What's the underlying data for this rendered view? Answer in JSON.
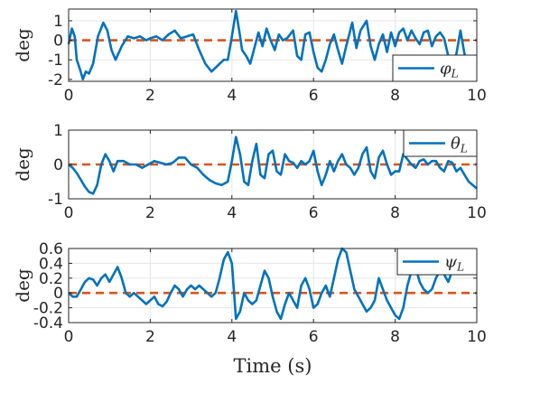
{
  "chart_data": [
    {
      "type": "line",
      "ylabel": "deg",
      "xlabel": "",
      "xlim": [
        0,
        10
      ],
      "ylim": [
        -2.1,
        1.6
      ],
      "xticks": [
        "0",
        "2",
        "4",
        "6",
        "8",
        "10"
      ],
      "yticks": [
        1,
        0,
        -1,
        -2
      ],
      "ytick_labels": [
        "1",
        "0",
        "-1",
        "-2"
      ],
      "grid": true,
      "legend_position": "bottom-right",
      "legend": {
        "symbol": "φ",
        "subscript": "L"
      },
      "series": [
        {
          "name": "φ_L",
          "color": "#0072BD",
          "x": [
            0,
            0.08,
            0.15,
            0.2,
            0.28,
            0.35,
            0.42,
            0.5,
            0.6,
            0.72,
            0.85,
            0.95,
            1.05,
            1.15,
            1.3,
            1.45,
            1.6,
            1.75,
            1.9,
            2.0,
            2.15,
            2.3,
            2.45,
            2.6,
            2.75,
            2.9,
            3.05,
            3.2,
            3.35,
            3.5,
            3.65,
            3.8,
            3.9,
            4.0,
            4.1,
            4.18,
            4.25,
            4.35,
            4.45,
            4.55,
            4.65,
            4.75,
            4.85,
            4.95,
            5.05,
            5.15,
            5.25,
            5.35,
            5.5,
            5.6,
            5.7,
            5.8,
            5.9,
            6.0,
            6.1,
            6.2,
            6.3,
            6.4,
            6.5,
            6.6,
            6.7,
            6.8,
            6.95,
            7.05,
            7.15,
            7.3,
            7.4,
            7.5,
            7.6,
            7.7,
            7.8,
            7.9,
            8.0,
            8.1,
            8.2,
            8.3,
            8.4,
            8.5,
            8.6,
            8.7,
            8.8,
            8.9,
            9.0,
            9.1,
            9.2,
            9.3,
            9.4,
            9.5,
            9.6,
            9.7,
            9.8,
            9.9,
            10.0
          ],
          "values": [
            -0.2,
            0.6,
            0.2,
            -1.0,
            -1.5,
            -2.0,
            -1.6,
            -1.7,
            -1.2,
            0.2,
            0.9,
            0.5,
            -0.5,
            -1.0,
            -0.3,
            0.2,
            0.1,
            0.2,
            0.0,
            0.1,
            0.2,
            0.0,
            0.3,
            0.5,
            0.1,
            0.2,
            0.3,
            -0.5,
            -1.2,
            -1.6,
            -1.3,
            -1.0,
            -1.0,
            0.2,
            1.5,
            0.5,
            -0.5,
            -0.8,
            -1.2,
            -0.4,
            0.4,
            -0.3,
            0.6,
            0.0,
            -0.5,
            0.3,
            0.0,
            0.1,
            0.5,
            -0.8,
            -1.0,
            0.3,
            0.4,
            -0.6,
            -1.4,
            -1.6,
            -1.0,
            -0.2,
            0.3,
            -0.5,
            -1.2,
            -0.3,
            0.9,
            -0.4,
            0.5,
            1.0,
            -0.3,
            -1.0,
            -0.2,
            0.3,
            -0.6,
            0.4,
            -0.3,
            0.4,
            0.6,
            0.0,
            0.5,
            0.1,
            -0.2,
            0.4,
            0.5,
            -0.3,
            0.2,
            0.4,
            0.1,
            -0.8,
            -1.2,
            -0.7,
            0.5,
            -0.7,
            -1.3,
            -1.6,
            -1.7
          ]
        },
        {
          "name": "zero reference",
          "color": "#D95319",
          "x": [
            0,
            10
          ],
          "values": [
            0,
            0
          ]
        }
      ]
    },
    {
      "type": "line",
      "ylabel": "deg",
      "xlabel": "",
      "xlim": [
        0,
        10
      ],
      "ylim": [
        -1,
        1
      ],
      "xticks": [
        "0",
        "2",
        "4",
        "6",
        "8",
        "10"
      ],
      "yticks": [
        1,
        0,
        -1
      ],
      "ytick_labels": [
        "1",
        "0",
        "-1"
      ],
      "grid": true,
      "legend_position": "top-right",
      "legend": {
        "symbol": "θ",
        "subscript": "L"
      },
      "series": [
        {
          "name": "θ_L",
          "color": "#0072BD",
          "x": [
            0,
            0.1,
            0.2,
            0.3,
            0.4,
            0.5,
            0.6,
            0.7,
            0.8,
            0.9,
            1.0,
            1.1,
            1.2,
            1.35,
            1.5,
            1.65,
            1.8,
            1.95,
            2.1,
            2.25,
            2.4,
            2.55,
            2.7,
            2.85,
            3.0,
            3.15,
            3.3,
            3.45,
            3.6,
            3.75,
            3.9,
            4.0,
            4.1,
            4.2,
            4.3,
            4.4,
            4.5,
            4.6,
            4.7,
            4.8,
            4.9,
            5.0,
            5.1,
            5.2,
            5.3,
            5.4,
            5.5,
            5.6,
            5.7,
            5.8,
            5.9,
            6.0,
            6.1,
            6.2,
            6.3,
            6.4,
            6.5,
            6.6,
            6.7,
            6.8,
            6.9,
            7.0,
            7.1,
            7.2,
            7.3,
            7.4,
            7.5,
            7.6,
            7.7,
            7.8,
            7.9,
            8.0,
            8.1,
            8.2,
            8.3,
            8.4,
            8.5,
            8.6,
            8.7,
            8.8,
            8.9,
            9.0,
            9.1,
            9.2,
            9.3,
            9.4,
            9.5,
            9.6,
            9.7,
            9.8,
            9.9,
            10.0
          ],
          "values": [
            0.0,
            -0.1,
            -0.25,
            -0.45,
            -0.65,
            -0.8,
            -0.85,
            -0.6,
            0.0,
            0.3,
            0.1,
            -0.2,
            0.1,
            0.1,
            0.0,
            0.0,
            -0.1,
            0.0,
            0.1,
            0.05,
            0.0,
            0.05,
            0.2,
            0.2,
            0.0,
            -0.1,
            -0.3,
            -0.45,
            -0.55,
            -0.6,
            -0.5,
            0.1,
            0.8,
            0.3,
            -0.5,
            -0.6,
            0.1,
            0.6,
            -0.3,
            -0.4,
            0.3,
            0.4,
            -0.2,
            -0.3,
            0.3,
            0.1,
            0.05,
            -0.1,
            0.1,
            0.0,
            0.1,
            0.4,
            -0.2,
            -0.6,
            -0.3,
            0.1,
            -0.2,
            0.1,
            0.3,
            0.0,
            -0.1,
            -0.3,
            -0.1,
            0.3,
            0.5,
            -0.2,
            -0.4,
            0.2,
            0.4,
            0.0,
            -0.3,
            -0.2,
            -0.2,
            0.3,
            0.15,
            0.0,
            -0.1,
            0.1,
            0.15,
            0.0,
            0.1,
            0.1,
            -0.1,
            -0.2,
            0.1,
            0.05,
            -0.2,
            -0.1,
            -0.3,
            -0.5,
            -0.6,
            -0.7
          ]
        },
        {
          "name": "zero reference",
          "color": "#D95319",
          "x": [
            0,
            10
          ],
          "values": [
            0,
            0
          ]
        }
      ]
    },
    {
      "type": "line",
      "ylabel": "deg",
      "xlabel": "Time (s)",
      "xlim": [
        0,
        10
      ],
      "ylim": [
        -0.4,
        0.6
      ],
      "xticks": [
        "0",
        "2",
        "4",
        "6",
        "8",
        "10"
      ],
      "yticks": [
        0.6,
        0.4,
        0.2,
        0,
        -0.2,
        -0.4
      ],
      "ytick_labels": [
        "0.6",
        "0.4",
        "0.2",
        "0",
        "-0.2",
        "-0.4"
      ],
      "grid": true,
      "legend_position": "top-right",
      "legend": {
        "symbol": "ψ",
        "subscript": "L"
      },
      "series": [
        {
          "name": "ψ_L",
          "color": "#0072BD",
          "x": [
            0,
            0.1,
            0.2,
            0.3,
            0.4,
            0.5,
            0.6,
            0.7,
            0.8,
            0.9,
            1.0,
            1.1,
            1.2,
            1.3,
            1.4,
            1.5,
            1.6,
            1.7,
            1.8,
            1.9,
            2.0,
            2.1,
            2.2,
            2.3,
            2.4,
            2.5,
            2.6,
            2.7,
            2.8,
            2.9,
            3.0,
            3.1,
            3.2,
            3.3,
            3.4,
            3.5,
            3.6,
            3.7,
            3.8,
            3.9,
            4.0,
            4.1,
            4.2,
            4.3,
            4.4,
            4.5,
            4.6,
            4.7,
            4.8,
            4.9,
            5.0,
            5.1,
            5.2,
            5.3,
            5.4,
            5.5,
            5.6,
            5.7,
            5.8,
            5.9,
            6.0,
            6.1,
            6.2,
            6.3,
            6.4,
            6.5,
            6.6,
            6.7,
            6.8,
            6.9,
            7.0,
            7.1,
            7.2,
            7.3,
            7.4,
            7.5,
            7.6,
            7.7,
            7.8,
            7.9,
            8.0,
            8.1,
            8.2,
            8.3,
            8.4,
            8.5,
            8.6,
            8.7,
            8.8,
            8.9,
            9.0,
            9.1,
            9.2,
            9.3,
            9.4,
            9.5,
            9.6,
            9.7,
            9.8,
            9.9,
            10.0
          ],
          "values": [
            0.0,
            -0.05,
            -0.05,
            0.05,
            0.15,
            0.2,
            0.18,
            0.1,
            0.2,
            0.25,
            0.15,
            0.25,
            0.35,
            0.2,
            0.0,
            -0.05,
            0.0,
            -0.05,
            -0.1,
            -0.15,
            -0.1,
            -0.05,
            -0.15,
            -0.18,
            -0.12,
            0.0,
            0.1,
            0.05,
            -0.05,
            0.05,
            0.1,
            0.05,
            0.1,
            0.05,
            0.0,
            -0.05,
            0.0,
            0.2,
            0.45,
            0.55,
            0.4,
            -0.35,
            -0.25,
            0.0,
            -0.1,
            -0.15,
            -0.1,
            0.1,
            0.3,
            0.2,
            -0.05,
            -0.25,
            -0.35,
            -0.15,
            0.0,
            -0.1,
            -0.2,
            0.1,
            0.2,
            0.05,
            -0.2,
            -0.15,
            0.0,
            0.1,
            -0.05,
            0.2,
            0.45,
            0.6,
            0.55,
            0.3,
            0.05,
            -0.05,
            -0.15,
            -0.25,
            -0.2,
            -0.1,
            0.2,
            0.05,
            -0.1,
            -0.2,
            -0.3,
            -0.35,
            -0.2,
            0.1,
            0.3,
            0.35,
            0.15,
            0.05,
            0.0,
            0.05,
            0.2,
            0.3,
            0.25,
            0.15,
            0.3,
            0.4,
            0.45,
            0.45,
            0.45,
            0.45,
            0.45
          ]
        },
        {
          "name": "zero reference",
          "color": "#D95319",
          "x": [
            0,
            10
          ],
          "values": [
            0,
            0
          ]
        }
      ]
    }
  ]
}
